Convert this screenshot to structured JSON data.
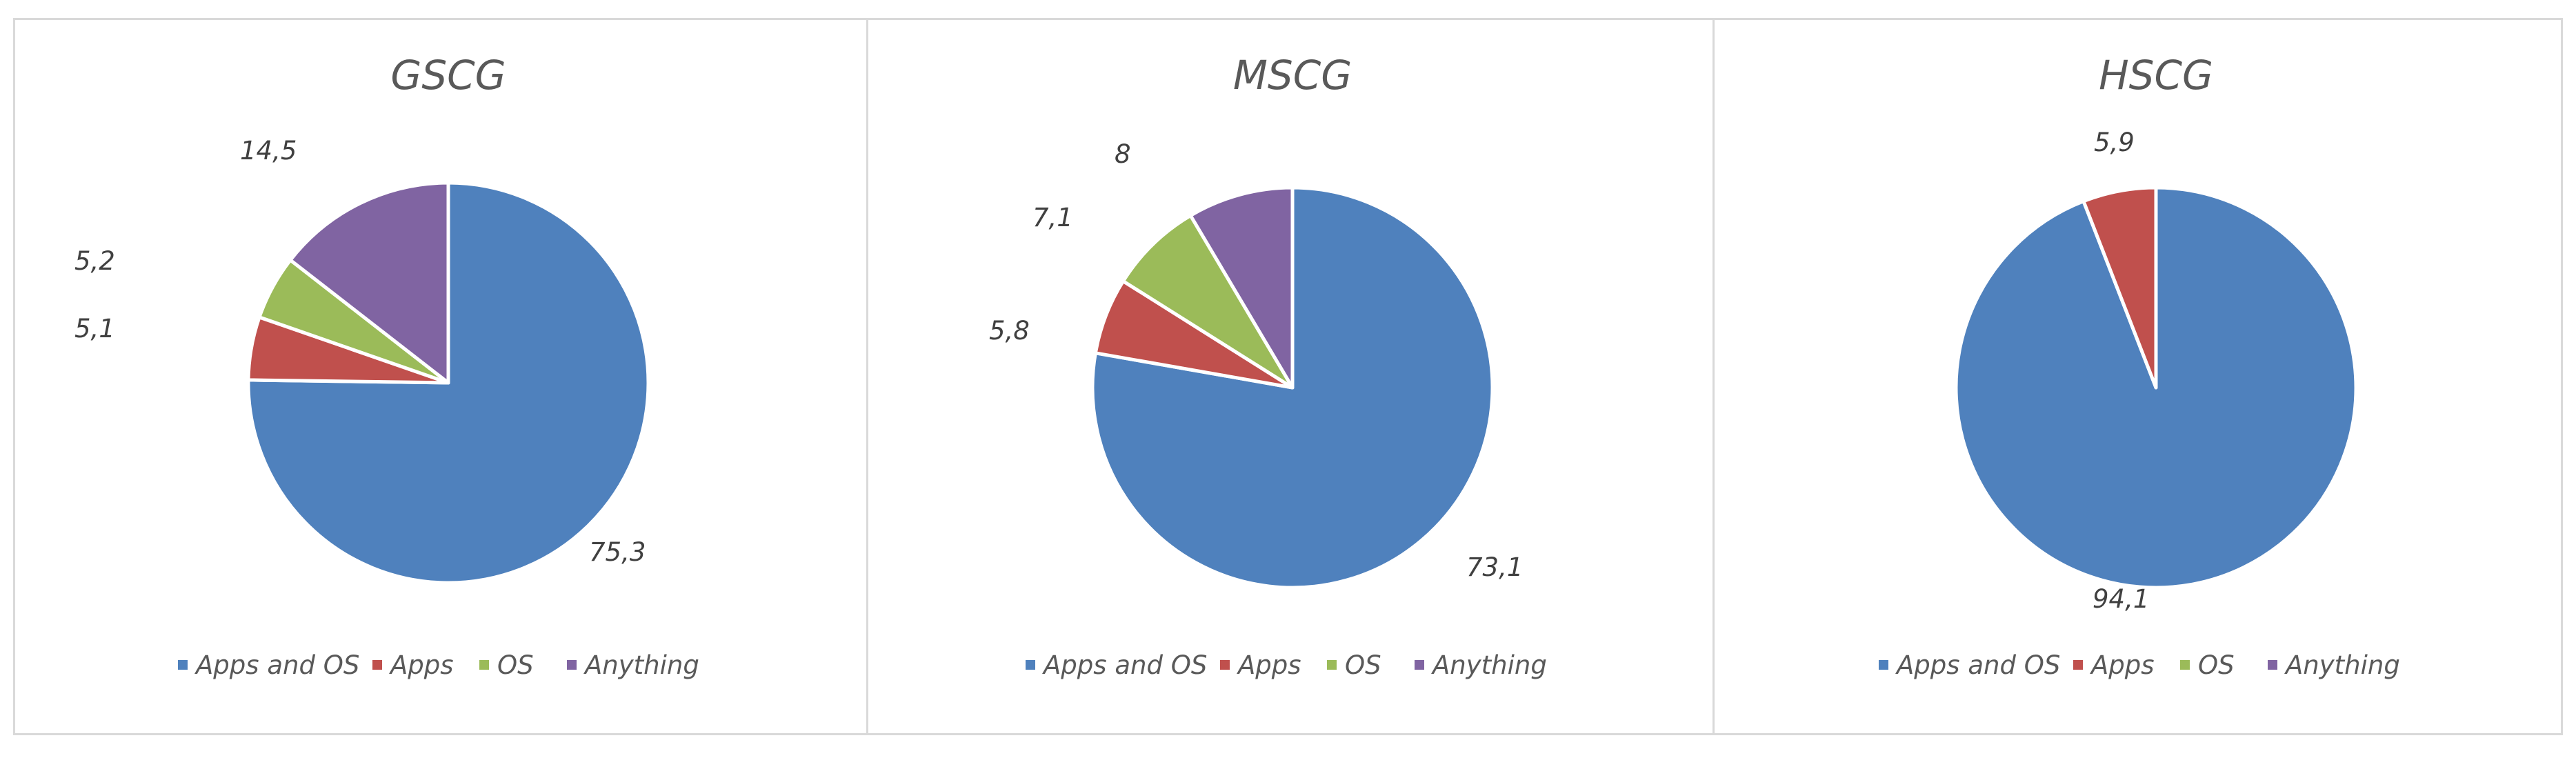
{
  "colors": {
    "Apps and OS": "#4f81bd",
    "Apps": "#c0504d",
    "OS": "#9bbb59",
    "Anything": "#8064a2"
  },
  "chart_data": [
    {
      "type": "pie",
      "title": "GSCG",
      "legend": [
        "Apps and OS",
        "Apps",
        "OS",
        "Anything"
      ],
      "legend_position": "bottom",
      "slices": [
        {
          "label": "Apps and OS",
          "value": 75.3,
          "display": "75,3"
        },
        {
          "label": "Apps",
          "value": 5.1,
          "display": "5,1"
        },
        {
          "label": "OS",
          "value": 5.2,
          "display": "5,2"
        },
        {
          "label": "Anything",
          "value": 14.5,
          "display": "14,5"
        }
      ]
    },
    {
      "type": "pie",
      "title": "MSCG",
      "legend": [
        "Apps and OS",
        "Apps",
        "OS",
        "Anything"
      ],
      "legend_position": "bottom",
      "slices": [
        {
          "label": "Apps and OS",
          "value": 73.1,
          "display": "73,1"
        },
        {
          "label": "Apps",
          "value": 5.8,
          "display": "5,8"
        },
        {
          "label": "OS",
          "value": 7.1,
          "display": "7,1"
        },
        {
          "label": "Anything",
          "value": 8,
          "display": "8"
        }
      ]
    },
    {
      "type": "pie",
      "title": "HSCG",
      "legend": [
        "Apps and OS",
        "Apps",
        "OS",
        "Anything"
      ],
      "legend_position": "bottom",
      "slices": [
        {
          "label": "Apps and OS",
          "value": 94.1,
          "display": "94,1"
        },
        {
          "label": "Apps",
          "value": 5.9,
          "display": "5,9"
        },
        {
          "label": "OS",
          "value": 0,
          "display": ""
        },
        {
          "label": "Anything",
          "value": 0,
          "display": ""
        }
      ]
    }
  ]
}
